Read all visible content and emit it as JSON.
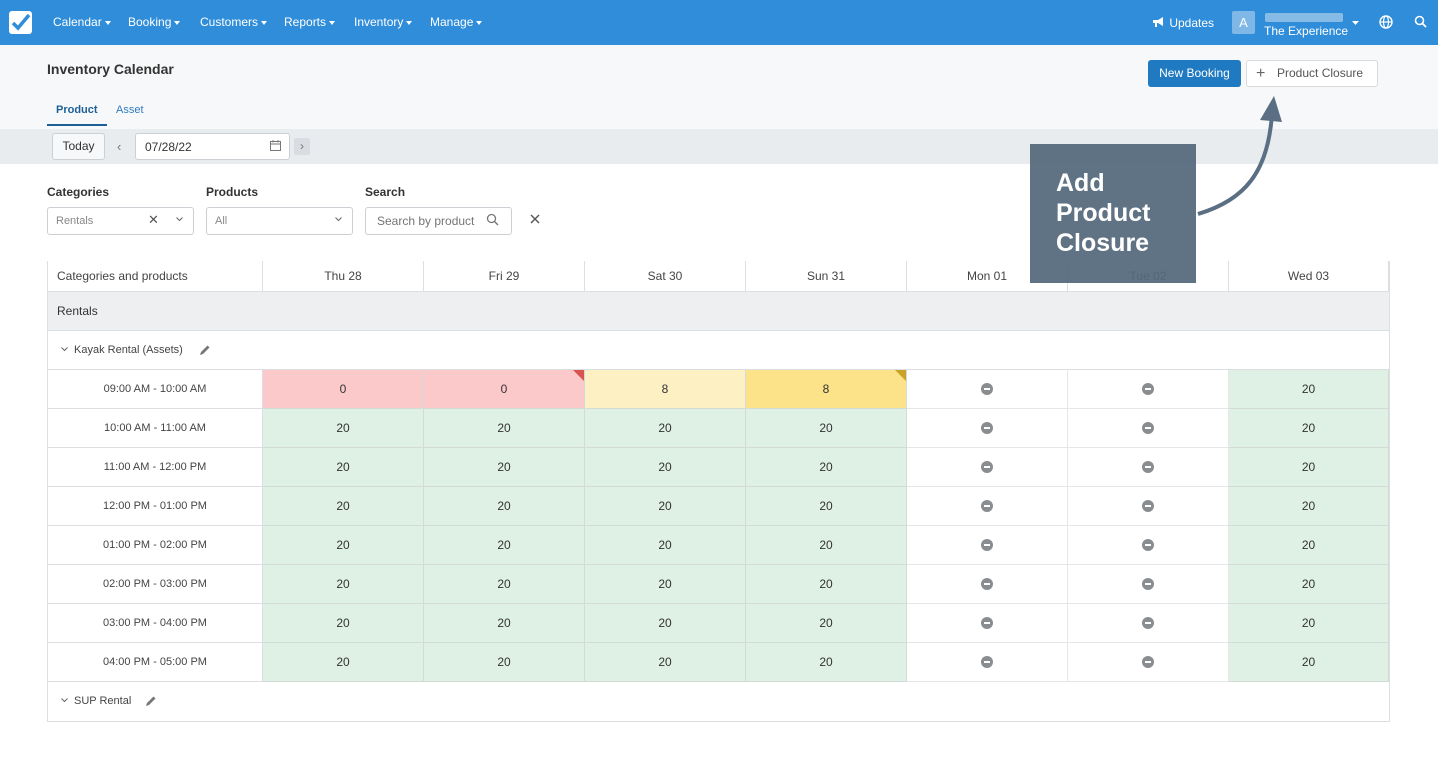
{
  "nav": {
    "items": [
      "Calendar",
      "Booking",
      "Customers",
      "Reports",
      "Inventory",
      "Manage"
    ],
    "updates": "Updates",
    "avatar_letter": "A",
    "user_subtitle": "The Experience"
  },
  "header": {
    "title": "Inventory Calendar",
    "new_booking": "New Booking",
    "product_closure": "Product Closure",
    "tabs": [
      "Product",
      "Asset"
    ]
  },
  "toolbar": {
    "today": "Today",
    "date": "07/28/22"
  },
  "filters": {
    "categories_label": "Categories",
    "categories_value": "Rentals",
    "products_label": "Products",
    "products_value": "All",
    "search_label": "Search",
    "search_placeholder": "Search by product"
  },
  "grid": {
    "first_header": "Categories and products",
    "days": [
      "Thu 28",
      "Fri 29",
      "Sat 30",
      "Sun 31",
      "Mon 01",
      "Tue 02",
      "Wed 03"
    ],
    "category": "Rentals",
    "product1": "Kayak Rental (Assets)",
    "product2": "SUP Rental",
    "time_slots": [
      {
        "time": "09:00 AM - 10:00 AM",
        "values": [
          "0",
          "0",
          "8",
          "8",
          "closed",
          "closed",
          "20"
        ],
        "status": [
          "red",
          "red",
          "ltyellow",
          "yellow",
          "closed",
          "closed",
          "green"
        ]
      },
      {
        "time": "10:00 AM - 11:00 AM",
        "values": [
          "20",
          "20",
          "20",
          "20",
          "closed",
          "closed",
          "20"
        ]
      },
      {
        "time": "11:00 AM - 12:00 PM",
        "values": [
          "20",
          "20",
          "20",
          "20",
          "closed",
          "closed",
          "20"
        ]
      },
      {
        "time": "12:00 PM - 01:00 PM",
        "values": [
          "20",
          "20",
          "20",
          "20",
          "closed",
          "closed",
          "20"
        ]
      },
      {
        "time": "01:00 PM - 02:00 PM",
        "values": [
          "20",
          "20",
          "20",
          "20",
          "closed",
          "closed",
          "20"
        ]
      },
      {
        "time": "02:00 PM - 03:00 PM",
        "values": [
          "20",
          "20",
          "20",
          "20",
          "closed",
          "closed",
          "20"
        ]
      },
      {
        "time": "03:00 PM - 04:00 PM",
        "values": [
          "20",
          "20",
          "20",
          "20",
          "closed",
          "closed",
          "20"
        ]
      },
      {
        "time": "04:00 PM - 05:00 PM",
        "values": [
          "20",
          "20",
          "20",
          "20",
          "closed",
          "closed",
          "20"
        ]
      }
    ]
  },
  "callout": {
    "line1": "Add",
    "line2": "Product",
    "line3": "Closure"
  },
  "colors": {
    "nav": "#2f8dd9",
    "primary_button": "#1f7ac2",
    "available": "#dff1e5",
    "sold_out": "#fcc9ca",
    "low": "#fce288"
  }
}
